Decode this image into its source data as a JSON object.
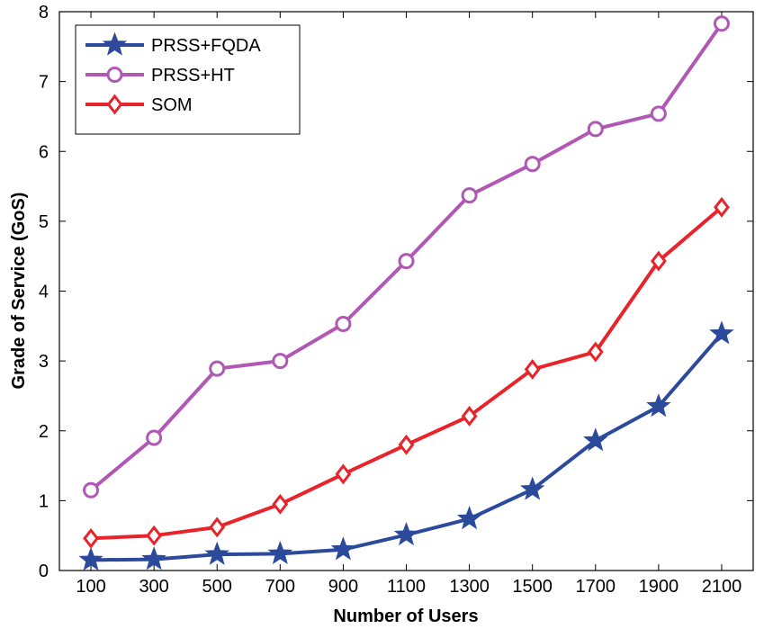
{
  "chart_data": {
    "type": "line",
    "title": "",
    "xlabel": "Number of Users",
    "ylabel": "Grade of Service (GoS)",
    "x": [
      100,
      300,
      500,
      700,
      900,
      1100,
      1300,
      1500,
      1700,
      1900,
      2100
    ],
    "xticks": [
      "100",
      "300",
      "500",
      "700",
      "900",
      "1100",
      "1300",
      "1500",
      "1700",
      "1900",
      "2100"
    ],
    "xlim": [
      0,
      2200
    ],
    "ylim": [
      0,
      8
    ],
    "yticks": [
      "0",
      "1",
      "2",
      "3",
      "4",
      "5",
      "6",
      "7",
      "8"
    ],
    "grid": false,
    "legend_position": "top-left",
    "series": [
      {
        "name": "PRSS+FQDA",
        "color": "#2b4a9b",
        "marker": "star",
        "values": [
          0.15,
          0.16,
          0.23,
          0.24,
          0.3,
          0.51,
          0.74,
          1.16,
          1.86,
          2.35,
          3.39
        ]
      },
      {
        "name": "PRSS+HT",
        "color": "#b158b5",
        "marker": "circle",
        "values": [
          1.15,
          1.9,
          2.89,
          3.0,
          3.53,
          4.43,
          5.37,
          5.82,
          6.32,
          6.54,
          7.83
        ]
      },
      {
        "name": "SOM",
        "color": "#e8232a",
        "marker": "diamond",
        "values": [
          0.46,
          0.5,
          0.62,
          0.95,
          1.38,
          1.8,
          2.21,
          2.88,
          3.13,
          4.43,
          5.2
        ]
      }
    ]
  }
}
